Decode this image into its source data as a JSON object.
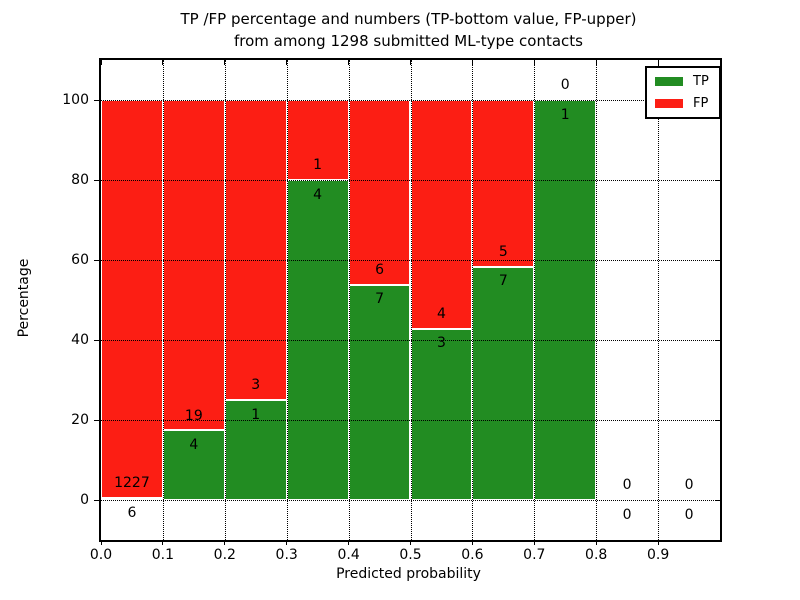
{
  "chart_data": {
    "type": "stacked-bar",
    "title_line1": "TP /FP percentage and numbers (TP-bottom value, FP-upper)",
    "title_line2": "from among 1298 submitted ML-type contacts",
    "total_contacts": 1298,
    "xlabel": "Predicted probability",
    "ylabel": "Percentage",
    "xlim": [
      0.0,
      1.0
    ],
    "ylim": [
      -10,
      110
    ],
    "grid": "dotted",
    "legend_position": "upper-right",
    "xtick_labels": [
      "0.0",
      "0.1",
      "0.2",
      "0.3",
      "0.4",
      "0.5",
      "0.6",
      "0.7",
      "0.8",
      "0.9"
    ],
    "xtick_values": [
      0.0,
      0.1,
      0.2,
      0.3,
      0.4,
      0.5,
      0.6,
      0.7,
      0.8,
      0.9
    ],
    "ytick_values": [
      0,
      20,
      40,
      60,
      80,
      100
    ],
    "bin_width": 0.1,
    "series": [
      {
        "name": "TP",
        "color": "#228c22",
        "position": "bottom"
      },
      {
        "name": "FP",
        "color": "#fc1e14",
        "position": "top"
      }
    ],
    "bins": [
      {
        "range": "0.0-0.1",
        "tp": 6,
        "fp": 1227,
        "tp_pct": 0.49,
        "fp_pct": 99.51
      },
      {
        "range": "0.1-0.2",
        "tp": 4,
        "fp": 19,
        "tp_pct": 17.39,
        "fp_pct": 82.61
      },
      {
        "range": "0.2-0.3",
        "tp": 1,
        "fp": 3,
        "tp_pct": 25.0,
        "fp_pct": 75.0
      },
      {
        "range": "0.3-0.4",
        "tp": 4,
        "fp": 1,
        "tp_pct": 80.0,
        "fp_pct": 20.0
      },
      {
        "range": "0.4-0.5",
        "tp": 7,
        "fp": 6,
        "tp_pct": 53.85,
        "fp_pct": 46.15
      },
      {
        "range": "0.5-0.6",
        "tp": 3,
        "fp": 4,
        "tp_pct": 42.86,
        "fp_pct": 57.14
      },
      {
        "range": "0.6-0.7",
        "tp": 7,
        "fp": 5,
        "tp_pct": 58.33,
        "fp_pct": 41.67
      },
      {
        "range": "0.7-0.8",
        "tp": 1,
        "fp": 0,
        "tp_pct": 100.0,
        "fp_pct": 0.0
      },
      {
        "range": "0.8-0.9",
        "tp": 0,
        "fp": 0,
        "tp_pct": 0.0,
        "fp_pct": 0.0
      },
      {
        "range": "0.9-1.0",
        "tp": 0,
        "fp": 0,
        "tp_pct": 0.0,
        "fp_pct": 0.0
      }
    ],
    "colors": {
      "tp_green": "#228c22",
      "fp_red": "#fc1e14",
      "bar_edge": "#ffffff",
      "grid_and_text": "#000000",
      "background": "#ffffff"
    }
  },
  "legend": {
    "items": [
      {
        "label": "TP",
        "color": "#228c22"
      },
      {
        "label": "FP",
        "color": "#fc1e14"
      }
    ]
  }
}
